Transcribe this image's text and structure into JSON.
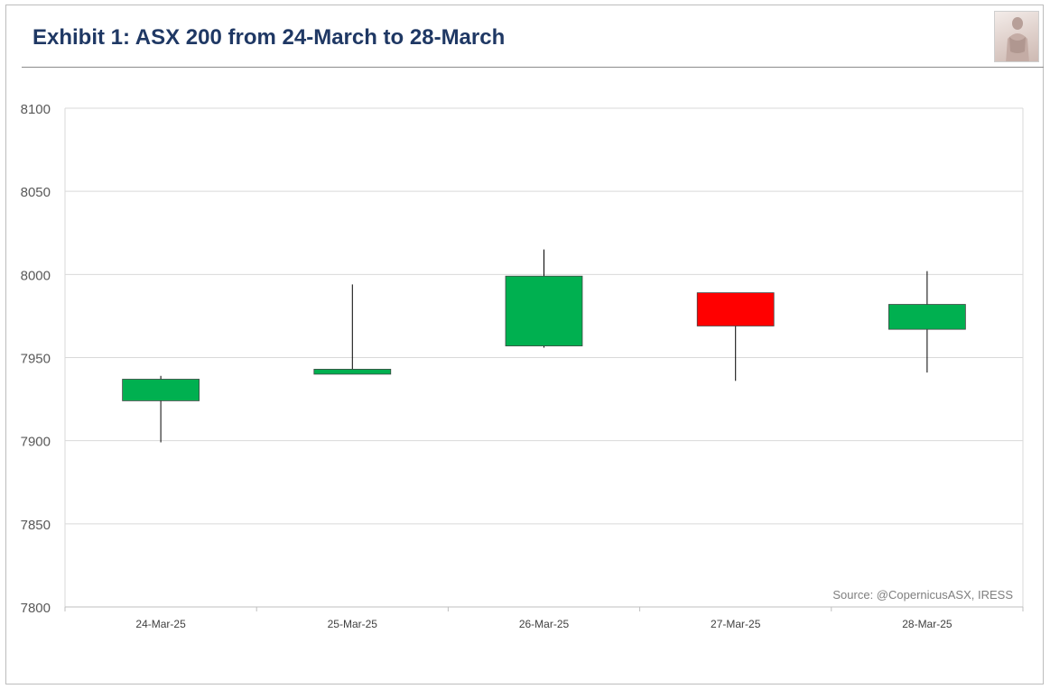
{
  "header": {
    "title": "Exhibit 1: ASX 200 from 24-March to 28-March",
    "logo_icon": "statue-logo-icon"
  },
  "colors": {
    "title": "#1f3864",
    "up_candle": "#00b050",
    "down_candle": "#ff0000",
    "gridline": "#d9d9d9",
    "wick": "#000000"
  },
  "chart_data": {
    "type": "candlestick",
    "title": "Exhibit 1: ASX 200 from 24-March to 28-March",
    "categories": [
      "24-Mar-25",
      "25-Mar-25",
      "26-Mar-25",
      "27-Mar-25",
      "28-Mar-25"
    ],
    "ohlc": [
      {
        "date": "24-Mar-25",
        "open": 7924,
        "high": 7939,
        "low": 7899,
        "close": 7937
      },
      {
        "date": "25-Mar-25",
        "open": 7940,
        "high": 7994,
        "low": 7940,
        "close": 7943
      },
      {
        "date": "26-Mar-25",
        "open": 7957,
        "high": 8015,
        "low": 7956,
        "close": 7999
      },
      {
        "date": "27-Mar-25",
        "open": 7989,
        "high": 7989,
        "low": 7936,
        "close": 7969
      },
      {
        "date": "28-Mar-25",
        "open": 7967,
        "high": 8002,
        "low": 7941,
        "close": 7982
      }
    ],
    "ylim": [
      7800,
      8100
    ],
    "yticks": [
      8100,
      8050,
      8000,
      7950,
      7900,
      7850,
      7800
    ],
    "grid": true,
    "legend": "none",
    "xlabel": "",
    "ylabel": "",
    "annotation": "Source: @CopernicusASX, IRESS"
  }
}
